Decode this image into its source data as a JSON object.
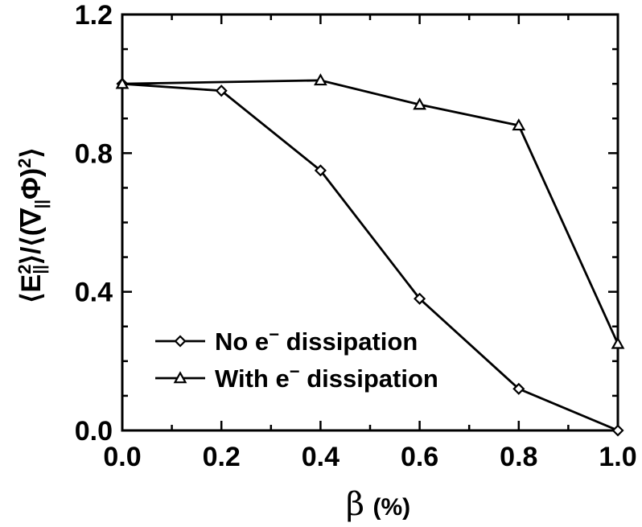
{
  "chart_data": {
    "type": "line",
    "xlabel": "β (%)",
    "ylabel": "⟨E∥²⟩/⟨(∇∥Φ)²⟩",
    "xlim": [
      0.0,
      1.0
    ],
    "ylim": [
      0.0,
      1.2
    ],
    "x_ticks": [
      "0.0",
      "0.2",
      "0.4",
      "0.6",
      "0.8",
      "1.0"
    ],
    "y_ticks": [
      "0.0",
      "0.4",
      "0.8",
      "1.2"
    ],
    "grid": false,
    "legend_position": "bottom-left",
    "series": [
      {
        "name": "No e⁻ dissipation",
        "marker": "diamond",
        "x": [
          0.0,
          0.2,
          0.4,
          0.6,
          0.8,
          1.0
        ],
        "y": [
          1.0,
          0.98,
          0.75,
          0.38,
          0.12,
          0.0
        ]
      },
      {
        "name": "With e⁻ dissipation",
        "marker": "triangle",
        "x": [
          0.0,
          0.4,
          0.6,
          0.8,
          1.0
        ],
        "y": [
          1.0,
          1.01,
          0.94,
          0.88,
          0.25
        ]
      }
    ],
    "legend": {
      "items": [
        {
          "prefix": "No e",
          "sup": "−",
          "suffix": " dissipation"
        },
        {
          "prefix": "With e",
          "sup": "−",
          "suffix": " dissipation"
        }
      ]
    },
    "xlabel_parts": {
      "symbol": "β",
      "unit": "(%)"
    },
    "ylabel_parts": {
      "l1": "⟨E",
      "s1": "2",
      "b1": "||",
      "mid": "⟩/⟨(∇",
      "b2": "||",
      "mid2": "Φ)",
      "s2": "2",
      "end": "⟩"
    }
  }
}
